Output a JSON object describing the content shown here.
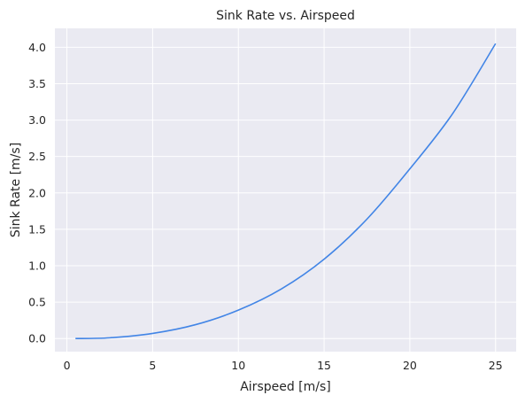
{
  "chart_data": {
    "type": "line",
    "title": "Sink Rate vs. Airspeed",
    "xlabel": "Airspeed [m/s]",
    "ylabel": "Sink Rate [m/s]",
    "xlim": [
      -0.7,
      26.2
    ],
    "ylim": [
      -0.18,
      4.26
    ],
    "xticks": [
      0,
      5,
      10,
      15,
      20,
      25
    ],
    "yticks": [
      0.0,
      0.5,
      1.0,
      1.5,
      2.0,
      2.5,
      3.0,
      3.5,
      4.0
    ],
    "xtick_labels": [
      "0",
      "5",
      "10",
      "15",
      "20",
      "25"
    ],
    "ytick_labels": [
      "0.0",
      "0.5",
      "1.0",
      "1.5",
      "2.0",
      "2.5",
      "3.0",
      "3.5",
      "4.0"
    ],
    "grid": true,
    "legend": "none",
    "colors": {
      "background": "#eaeaf2",
      "grid": "#ffffff",
      "line": "#4285e6",
      "text": "#262626"
    },
    "series": [
      {
        "x": [
          0.5,
          2.5,
          5,
          7.5,
          10,
          12.5,
          15,
          17.5,
          20,
          22.5,
          25
        ],
        "values": [
          0.0,
          0.01,
          0.07,
          0.19,
          0.39,
          0.68,
          1.09,
          1.64,
          2.33,
          3.09,
          4.05
        ]
      }
    ]
  }
}
